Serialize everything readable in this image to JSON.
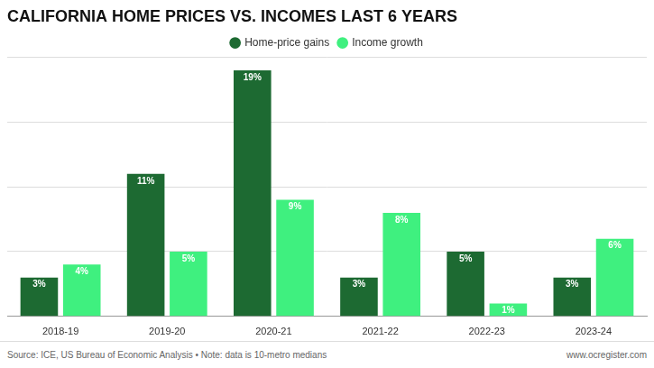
{
  "chart_data": {
    "type": "bar",
    "title": "CALIFORNIA HOME PRICES VS. INCOMES LAST 6 YEARS",
    "categories": [
      "2018-19",
      "2019-20",
      "2020-21",
      "2021-22",
      "2022-23",
      "2023-24"
    ],
    "series": [
      {
        "name": "Home-price gains",
        "color": "#1d6a32",
        "values": [
          3,
          11,
          19,
          3,
          5,
          3
        ],
        "value_labels": [
          "3%",
          "11%",
          "19%",
          "3%",
          "5%",
          "3%"
        ]
      },
      {
        "name": "Income growth",
        "color": "#3ff07f",
        "values": [
          4,
          5,
          9,
          8,
          1,
          6
        ],
        "value_labels": [
          "4%",
          "5%",
          "9%",
          "8%",
          "1%",
          "6%"
        ]
      }
    ],
    "ylim": [
      0,
      20
    ],
    "yticks": [
      0,
      5,
      10,
      15,
      20
    ],
    "grid": true,
    "legend": "top",
    "data_labels": true,
    "tick_labels": "x",
    "annotations": [
      "Source: ICE, US Bureau of Economic Analysis • Note: data is 10-metro medians",
      "www.ocregister.com"
    ]
  }
}
